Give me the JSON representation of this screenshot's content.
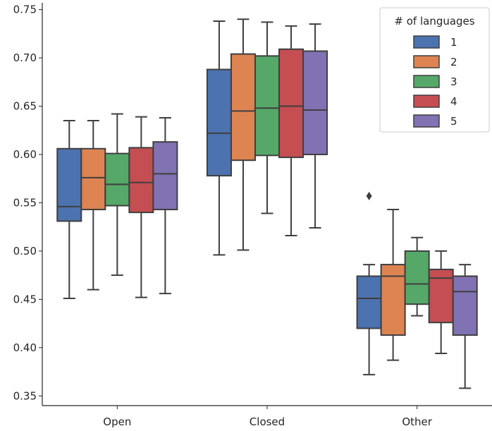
{
  "chart_data": {
    "type": "boxplot",
    "title": "",
    "xlabel": "",
    "ylabel": "",
    "ylim": [
      0.34,
      0.757
    ],
    "yticks": [
      0.35,
      0.4,
      0.45,
      0.5,
      0.55,
      0.6,
      0.65,
      0.7,
      0.75
    ],
    "ytick_labels": [
      "0.35",
      "0.40",
      "0.45",
      "0.50",
      "0.55",
      "0.60",
      "0.65",
      "0.70",
      "0.75"
    ],
    "categories": [
      "Open",
      "Closed",
      "Other"
    ],
    "legend": {
      "title": "# of languages",
      "placement": "top-right"
    },
    "grid": false,
    "series": [
      {
        "name": "1",
        "color": "#4c72b0",
        "boxes": [
          {
            "whisker_low": 0.451,
            "q1": 0.531,
            "median": 0.546,
            "q3": 0.606,
            "whisker_high": 0.635,
            "outliers": []
          },
          {
            "whisker_low": 0.496,
            "q1": 0.578,
            "median": 0.622,
            "q3": 0.688,
            "whisker_high": 0.738,
            "outliers": []
          },
          {
            "whisker_low": 0.372,
            "q1": 0.42,
            "median": 0.451,
            "q3": 0.474,
            "whisker_high": 0.486,
            "outliers": [
              0.557
            ]
          }
        ]
      },
      {
        "name": "2",
        "color": "#dd8452",
        "boxes": [
          {
            "whisker_low": 0.46,
            "q1": 0.543,
            "median": 0.576,
            "q3": 0.606,
            "whisker_high": 0.635,
            "outliers": []
          },
          {
            "whisker_low": 0.501,
            "q1": 0.594,
            "median": 0.645,
            "q3": 0.704,
            "whisker_high": 0.74,
            "outliers": []
          },
          {
            "whisker_low": 0.387,
            "q1": 0.413,
            "median": 0.474,
            "q3": 0.486,
            "whisker_high": 0.543,
            "outliers": []
          }
        ]
      },
      {
        "name": "3",
        "color": "#55a868",
        "boxes": [
          {
            "whisker_low": 0.475,
            "q1": 0.547,
            "median": 0.569,
            "q3": 0.601,
            "whisker_high": 0.642,
            "outliers": []
          },
          {
            "whisker_low": 0.539,
            "q1": 0.599,
            "median": 0.648,
            "q3": 0.702,
            "whisker_high": 0.737,
            "outliers": []
          },
          {
            "whisker_low": 0.433,
            "q1": 0.445,
            "median": 0.466,
            "q3": 0.5,
            "whisker_high": 0.514,
            "outliers": []
          }
        ]
      },
      {
        "name": "4",
        "color": "#c44e52",
        "boxes": [
          {
            "whisker_low": 0.452,
            "q1": 0.54,
            "median": 0.571,
            "q3": 0.607,
            "whisker_high": 0.639,
            "outliers": []
          },
          {
            "whisker_low": 0.516,
            "q1": 0.597,
            "median": 0.65,
            "q3": 0.709,
            "whisker_high": 0.733,
            "outliers": []
          },
          {
            "whisker_low": 0.394,
            "q1": 0.426,
            "median": 0.472,
            "q3": 0.481,
            "whisker_high": 0.5,
            "outliers": []
          }
        ]
      },
      {
        "name": "5",
        "color": "#8172b3",
        "boxes": [
          {
            "whisker_low": 0.456,
            "q1": 0.543,
            "median": 0.58,
            "q3": 0.613,
            "whisker_high": 0.638,
            "outliers": []
          },
          {
            "whisker_low": 0.524,
            "q1": 0.6,
            "median": 0.646,
            "q3": 0.707,
            "whisker_high": 0.735,
            "outliers": []
          },
          {
            "whisker_low": 0.358,
            "q1": 0.413,
            "median": 0.458,
            "q3": 0.474,
            "whisker_high": 0.486,
            "outliers": []
          }
        ]
      }
    ]
  }
}
